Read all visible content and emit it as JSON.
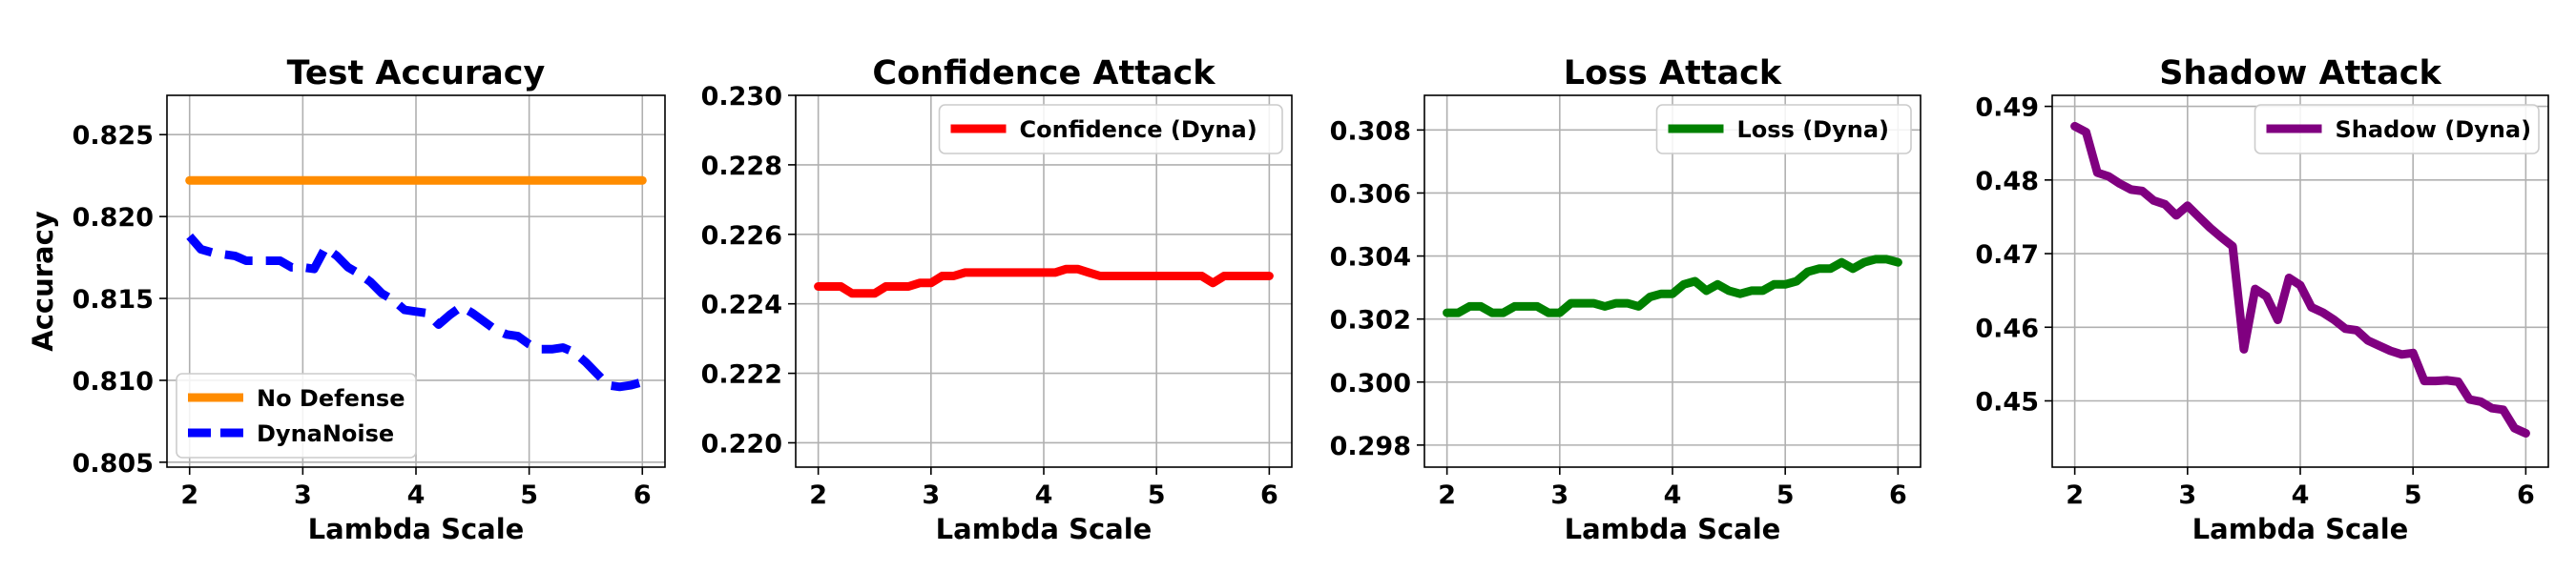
{
  "chart_data": [
    {
      "type": "line",
      "title": "Test Accuracy",
      "xlabel": "Lambda Scale",
      "ylabel": "Accuracy",
      "xlim": [
        1.8,
        6.2
      ],
      "ylim": [
        0.8047,
        0.8274
      ],
      "xticks": [
        "2",
        "3",
        "4",
        "5",
        "6"
      ],
      "yticks": [
        "0.805",
        "0.810",
        "0.815",
        "0.820",
        "0.825"
      ],
      "legend_position": "lower-left",
      "grid": true,
      "series": [
        {
          "name": "No Defense",
          "color": "#ff8c00",
          "style": "solid",
          "x": [
            2.0,
            6.0
          ],
          "y": [
            0.8222,
            0.8222
          ]
        },
        {
          "name": "DynaNoise",
          "color": "#0000ff",
          "style": "dashed",
          "x": [
            2.0,
            2.1,
            2.2,
            2.3,
            2.4,
            2.5,
            2.6,
            2.7,
            2.8,
            2.9,
            3.0,
            3.1,
            3.2,
            3.3,
            3.4,
            3.5,
            3.6,
            3.7,
            3.8,
            3.9,
            4.0,
            4.1,
            4.2,
            4.3,
            4.4,
            4.5,
            4.6,
            4.7,
            4.8,
            4.9,
            5.0,
            5.1,
            5.2,
            5.3,
            5.4,
            5.5,
            5.6,
            5.7,
            5.8,
            5.9,
            6.0
          ],
          "y": [
            0.8188,
            0.818,
            0.8178,
            0.8177,
            0.8176,
            0.8173,
            0.8173,
            0.8173,
            0.8173,
            0.8169,
            0.8169,
            0.8168,
            0.8181,
            0.8176,
            0.8169,
            0.8165,
            0.816,
            0.8153,
            0.8149,
            0.8143,
            0.8142,
            0.8141,
            0.8134,
            0.814,
            0.8145,
            0.8141,
            0.8136,
            0.8131,
            0.8128,
            0.8127,
            0.8122,
            0.8119,
            0.8119,
            0.812,
            0.8117,
            0.8111,
            0.8104,
            0.8097,
            0.8096,
            0.8097,
            0.8099
          ]
        }
      ]
    },
    {
      "type": "line",
      "title": "Confidence Attack",
      "xlabel": "Lambda Scale",
      "ylabel": "",
      "xlim": [
        1.8,
        6.2
      ],
      "ylim": [
        0.2193,
        0.23
      ],
      "xticks": [
        "2",
        "3",
        "4",
        "5",
        "6"
      ],
      "yticks": [
        "0.220",
        "0.222",
        "0.224",
        "0.226",
        "0.228",
        "0.230"
      ],
      "legend_position": "upper-right",
      "grid": true,
      "series": [
        {
          "name": "Confidence (Dyna)",
          "color": "#ff0000",
          "style": "solid",
          "x": [
            2.0,
            2.1,
            2.2,
            2.3,
            2.4,
            2.5,
            2.6,
            2.7,
            2.8,
            2.9,
            3.0,
            3.1,
            3.2,
            3.3,
            3.4,
            3.5,
            3.6,
            3.7,
            3.8,
            3.9,
            4.0,
            4.1,
            4.2,
            4.3,
            4.4,
            4.5,
            4.6,
            4.7,
            4.8,
            4.9,
            5.0,
            5.1,
            5.2,
            5.3,
            5.4,
            5.5,
            5.6,
            5.7,
            5.8,
            5.9,
            6.0
          ],
          "y": [
            0.2245,
            0.2245,
            0.2245,
            0.2243,
            0.2243,
            0.2243,
            0.2245,
            0.2245,
            0.2245,
            0.2246,
            0.2246,
            0.2248,
            0.2248,
            0.2249,
            0.2249,
            0.2249,
            0.2249,
            0.2249,
            0.2249,
            0.2249,
            0.2249,
            0.2249,
            0.225,
            0.225,
            0.2249,
            0.2248,
            0.2248,
            0.2248,
            0.2248,
            0.2248,
            0.2248,
            0.2248,
            0.2248,
            0.2248,
            0.2248,
            0.2246,
            0.2248,
            0.2248,
            0.2248,
            0.2248,
            0.2248
          ]
        }
      ]
    },
    {
      "type": "line",
      "title": "Loss Attack",
      "xlabel": "Lambda Scale",
      "ylabel": "",
      "xlim": [
        1.8,
        6.2
      ],
      "ylim": [
        0.2973,
        0.3091
      ],
      "xticks": [
        "2",
        "3",
        "4",
        "5",
        "6"
      ],
      "yticks": [
        "0.298",
        "0.300",
        "0.302",
        "0.304",
        "0.306",
        "0.308"
      ],
      "legend_position": "upper-right",
      "grid": true,
      "series": [
        {
          "name": "Loss (Dyna)",
          "color": "#008000",
          "style": "solid",
          "x": [
            2.0,
            2.1,
            2.2,
            2.3,
            2.4,
            2.5,
            2.6,
            2.7,
            2.8,
            2.9,
            3.0,
            3.1,
            3.2,
            3.3,
            3.4,
            3.5,
            3.6,
            3.7,
            3.8,
            3.9,
            4.0,
            4.1,
            4.2,
            4.3,
            4.4,
            4.5,
            4.6,
            4.7,
            4.8,
            4.9,
            5.0,
            5.1,
            5.2,
            5.3,
            5.4,
            5.5,
            5.6,
            5.7,
            5.8,
            5.9,
            6.0
          ],
          "y": [
            0.3022,
            0.3022,
            0.3024,
            0.3024,
            0.3022,
            0.3022,
            0.3024,
            0.3024,
            0.3024,
            0.3022,
            0.3022,
            0.3025,
            0.3025,
            0.3025,
            0.3024,
            0.3025,
            0.3025,
            0.3024,
            0.3027,
            0.3028,
            0.3028,
            0.3031,
            0.3032,
            0.3029,
            0.3031,
            0.3029,
            0.3028,
            0.3029,
            0.3029,
            0.3031,
            0.3031,
            0.3032,
            0.3035,
            0.3036,
            0.3036,
            0.3038,
            0.3036,
            0.3038,
            0.3039,
            0.3039,
            0.3038
          ]
        }
      ]
    },
    {
      "type": "line",
      "title": "Shadow Attack",
      "xlabel": "Lambda Scale",
      "ylabel": "",
      "xlim": [
        1.8,
        6.2
      ],
      "ylim": [
        0.441,
        0.4915
      ],
      "xticks": [
        "2",
        "3",
        "4",
        "5",
        "6"
      ],
      "yticks": [
        "0.45",
        "0.46",
        "0.47",
        "0.48",
        "0.49"
      ],
      "legend_position": "upper-right",
      "grid": true,
      "series": [
        {
          "name": "Shadow (Dyna)",
          "color": "#800080",
          "style": "solid",
          "x": [
            2.0,
            2.1,
            2.2,
            2.3,
            2.4,
            2.5,
            2.6,
            2.7,
            2.8,
            2.9,
            3.0,
            3.1,
            3.2,
            3.3,
            3.4,
            3.5,
            3.6,
            3.7,
            3.8,
            3.9,
            4.0,
            4.1,
            4.2,
            4.3,
            4.4,
            4.5,
            4.6,
            4.7,
            4.8,
            4.9,
            5.0,
            5.1,
            5.2,
            5.3,
            5.4,
            5.5,
            5.6,
            5.7,
            5.8,
            5.9,
            6.0
          ],
          "y": [
            0.4873,
            0.4865,
            0.481,
            0.4805,
            0.4795,
            0.4787,
            0.4785,
            0.4772,
            0.4767,
            0.4752,
            0.4765,
            0.475,
            0.4735,
            0.4722,
            0.471,
            0.457,
            0.4652,
            0.4642,
            0.461,
            0.4667,
            0.4657,
            0.4627,
            0.462,
            0.461,
            0.4598,
            0.4596,
            0.4582,
            0.4575,
            0.4568,
            0.4563,
            0.4565,
            0.4527,
            0.4527,
            0.4528,
            0.4526,
            0.4502,
            0.4499,
            0.449,
            0.4488,
            0.4463,
            0.4456
          ]
        }
      ]
    }
  ]
}
